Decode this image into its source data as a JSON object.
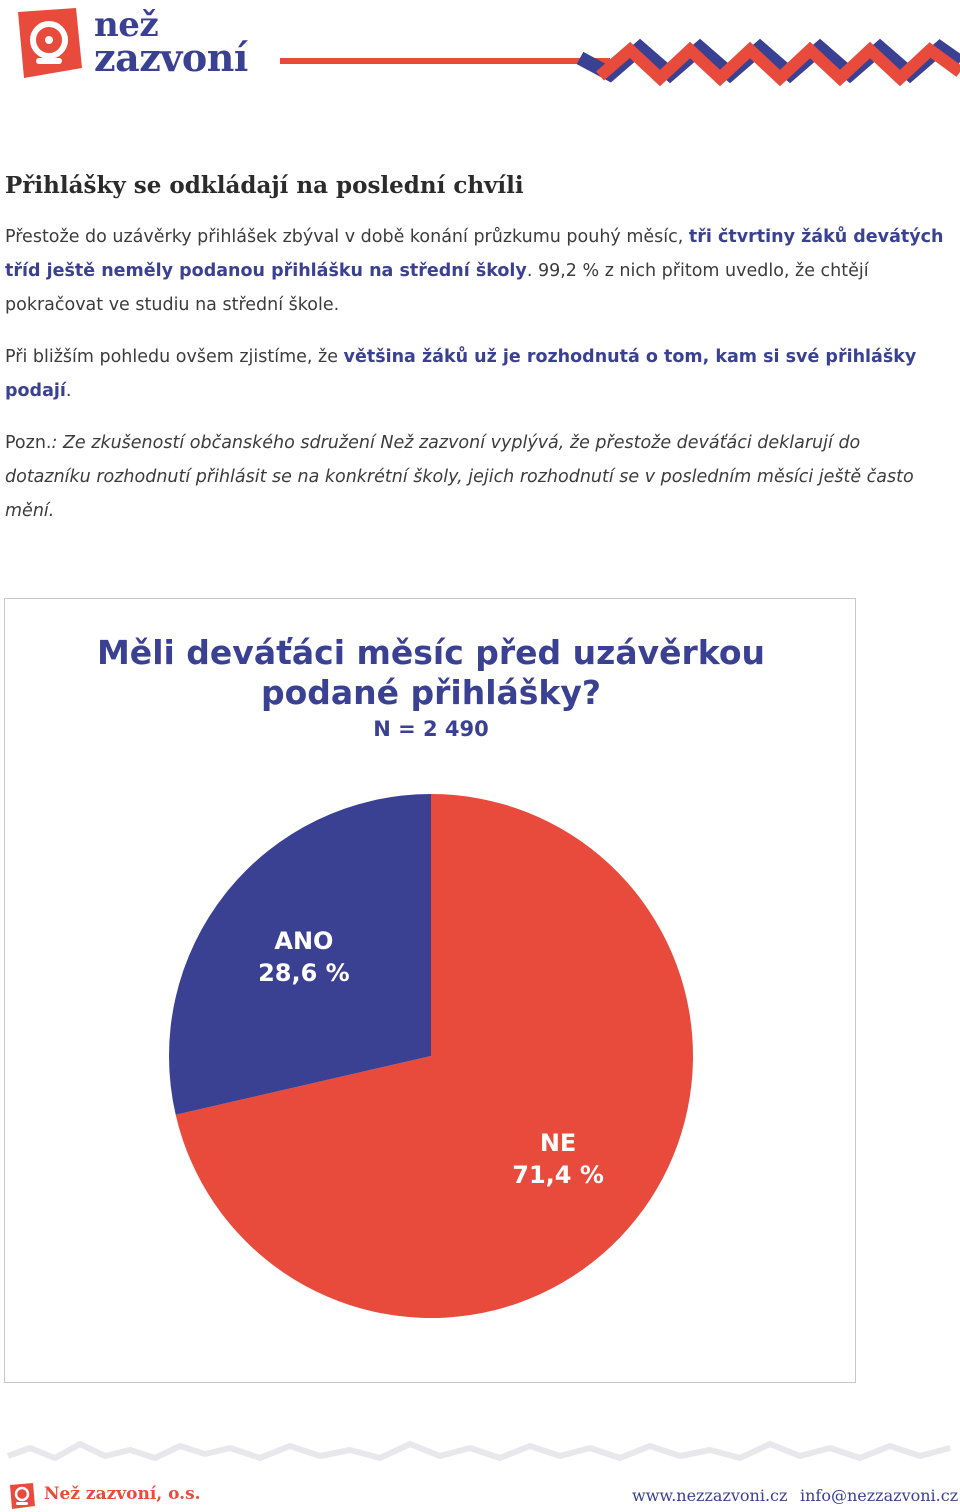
{
  "header": {
    "logo_line1": "než",
    "logo_line2": "zazvoní",
    "brand_red": "#e84a3c",
    "brand_blue": "#3a4193"
  },
  "article": {
    "title": "Přihlášky se odkládají na poslední chvíli",
    "para1_a": "Přestože do uzávěrky přihlášek zbýval v době konání průzkumu pouhý měsíc, ",
    "para1_b": "tři čtvrtiny žáků devátých tříd ještě neměly podanou přihlášku na střední školy",
    "para1_c": ". 99,2 % z nich přitom uvedlo, že chtějí pokračovat ve studiu na střední škole.",
    "para2_a": "Při bližším pohledu ovšem zjistíme, že ",
    "para2_b": "většina žáků už je rozhodnutá o tom, kam si své přihlášky podají",
    "para2_c": ".",
    "note_label": "Pozn.",
    "note_text": ": Ze zkušeností občanského sdružení Než zazvoní vyplývá, že přestože deváťáci deklarují do dotazníku rozhodnutí přihlásit se na konkrétní školy, jejich rozhodnutí se v posledním měsíci ještě často mění."
  },
  "chart_data": {
    "type": "pie",
    "title_line1": "Měli deváťáci měsíc před uzávěrkou",
    "title_line2": "podané přihlášky?",
    "subtitle": "N = 2 490",
    "categories": [
      "ANO",
      "NE"
    ],
    "values": [
      28.6,
      71.4
    ],
    "value_labels": [
      "28,6 %",
      "71,4 %"
    ],
    "colors": [
      "#3a4193",
      "#e84a3c"
    ]
  },
  "footer": {
    "org": "Než zazvoní, o.s.",
    "web": "www.nezzazvoni.cz",
    "email": "info@nezzazvoni.cz"
  }
}
